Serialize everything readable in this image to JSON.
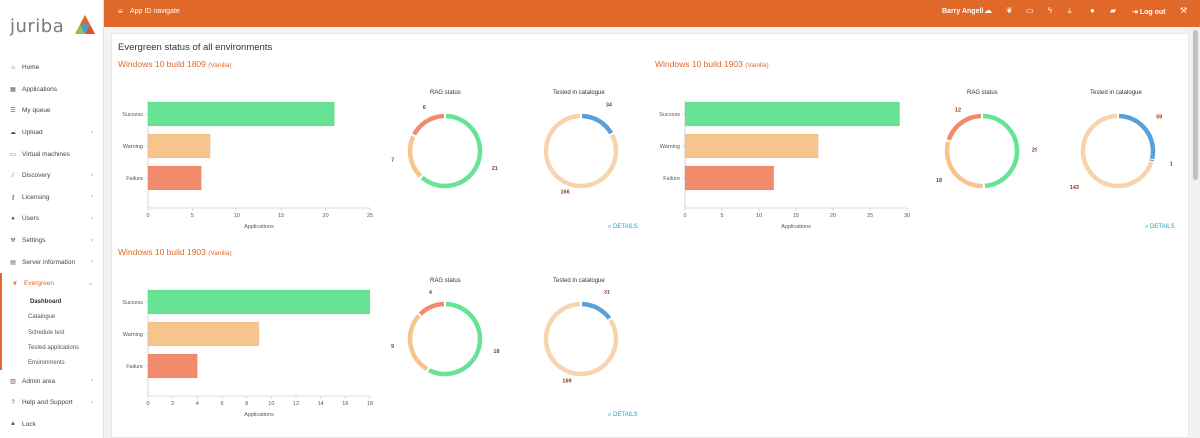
{
  "brand": {
    "logo_text": "juriba"
  },
  "topbar": {
    "app_label": "App ID navigate",
    "user_name": "Barry Angell",
    "logout_label": "Log out"
  },
  "sidebar": {
    "items": [
      {
        "label": "Home",
        "icon": "home-icon"
      },
      {
        "label": "Applications",
        "icon": "grid-icon"
      },
      {
        "label": "My queue",
        "icon": "list-icon"
      },
      {
        "label": "Upload",
        "icon": "cloud-upload-icon"
      },
      {
        "label": "Virtual machines",
        "icon": "monitor-icon"
      },
      {
        "label": "Discovery",
        "icon": "wand-icon"
      },
      {
        "label": "Licensing",
        "icon": "key-icon"
      },
      {
        "label": "Users",
        "icon": "users-icon"
      },
      {
        "label": "Settings",
        "icon": "wrench-icon"
      },
      {
        "label": "Server information",
        "icon": "server-icon"
      },
      {
        "label": "Evergreen",
        "icon": "leaf-icon"
      }
    ],
    "evergreen_sub": [
      "Dashboard",
      "Catalogue",
      "Schedule test",
      "Tested applications",
      "Environments"
    ],
    "bottom_items": [
      {
        "label": "Admin area",
        "icon": "database-icon"
      },
      {
        "label": "Help and Support",
        "icon": "question-icon"
      },
      {
        "label": "Lock",
        "icon": "lock-icon"
      }
    ]
  },
  "page": {
    "title": "Evergreen status of all environments",
    "details_label": "DETAILS",
    "rag_caption": "RAG status",
    "tested_caption": "Tested in catalogue",
    "x_axis_label": "Applications"
  },
  "chart_data": [
    {
      "env_name": "Windows 10 build 1809",
      "env_tag": "(Vanilla)",
      "bar": {
        "type": "bar",
        "categories": [
          "Success",
          "Warning",
          "Failure"
        ],
        "values": [
          21,
          7,
          6
        ],
        "xlim": [
          0,
          25
        ],
        "xticks": [
          0,
          5,
          10,
          15,
          20,
          25
        ],
        "xlabel": "Applications",
        "colors": [
          "#66e394",
          "#f8c48e",
          "#f28b6e"
        ]
      },
      "rag": {
        "type": "pie",
        "labels": [
          "Success",
          "Warning",
          "Failure"
        ],
        "values": [
          21,
          7,
          6
        ],
        "colors": [
          "#66e394",
          "#f8c48e",
          "#f28b6e"
        ]
      },
      "tested": {
        "type": "pie",
        "labels": [
          "Tested",
          "Not tested"
        ],
        "values": [
          34,
          166
        ],
        "colors": [
          "#5aa0d8",
          "#f8d4ae"
        ]
      }
    },
    {
      "env_name": "Windows 10 build 1903",
      "env_tag": "(Vanilla)",
      "bar": {
        "type": "bar",
        "categories": [
          "Success",
          "Warning",
          "Failure"
        ],
        "values": [
          29,
          18,
          12
        ],
        "xlim": [
          0,
          30
        ],
        "xticks": [
          0,
          5,
          10,
          15,
          20,
          25,
          30
        ],
        "xlabel": "Applications",
        "colors": [
          "#66e394",
          "#f8c48e",
          "#f28b6e"
        ]
      },
      "rag": {
        "type": "pie",
        "labels": [
          "Success",
          "Warning",
          "Failure"
        ],
        "values": [
          29,
          18,
          12
        ],
        "colors": [
          "#66e394",
          "#f8c48e",
          "#f28b6e"
        ]
      },
      "tested": {
        "type": "pie",
        "labels": [
          "Tested",
          "Other",
          "Not tested"
        ],
        "values": [
          59,
          1,
          143
        ],
        "colors": [
          "#5aa0d8",
          "#4c87c4",
          "#f8d4ae"
        ]
      }
    },
    {
      "env_name": "Windows 10 build 1903",
      "env_tag": "(Vanilla)",
      "bar": {
        "type": "bar",
        "categories": [
          "Success",
          "Warning",
          "Failure"
        ],
        "values": [
          18,
          9,
          4
        ],
        "xlim": [
          0,
          18
        ],
        "xticks": [
          0,
          2,
          4,
          6,
          8,
          10,
          12,
          14,
          16,
          18
        ],
        "xlabel": "Applications",
        "colors": [
          "#66e394",
          "#f8c48e",
          "#f28b6e"
        ]
      },
      "rag": {
        "type": "pie",
        "labels": [
          "Success",
          "Warning",
          "Failure"
        ],
        "values": [
          18,
          9,
          4
        ],
        "colors": [
          "#66e394",
          "#f8c48e",
          "#f28b6e"
        ]
      },
      "tested": {
        "type": "pie",
        "labels": [
          "Tested",
          "Not tested"
        ],
        "values": [
          31,
          169
        ],
        "colors": [
          "#5aa0d8",
          "#f8d4ae"
        ]
      }
    }
  ]
}
